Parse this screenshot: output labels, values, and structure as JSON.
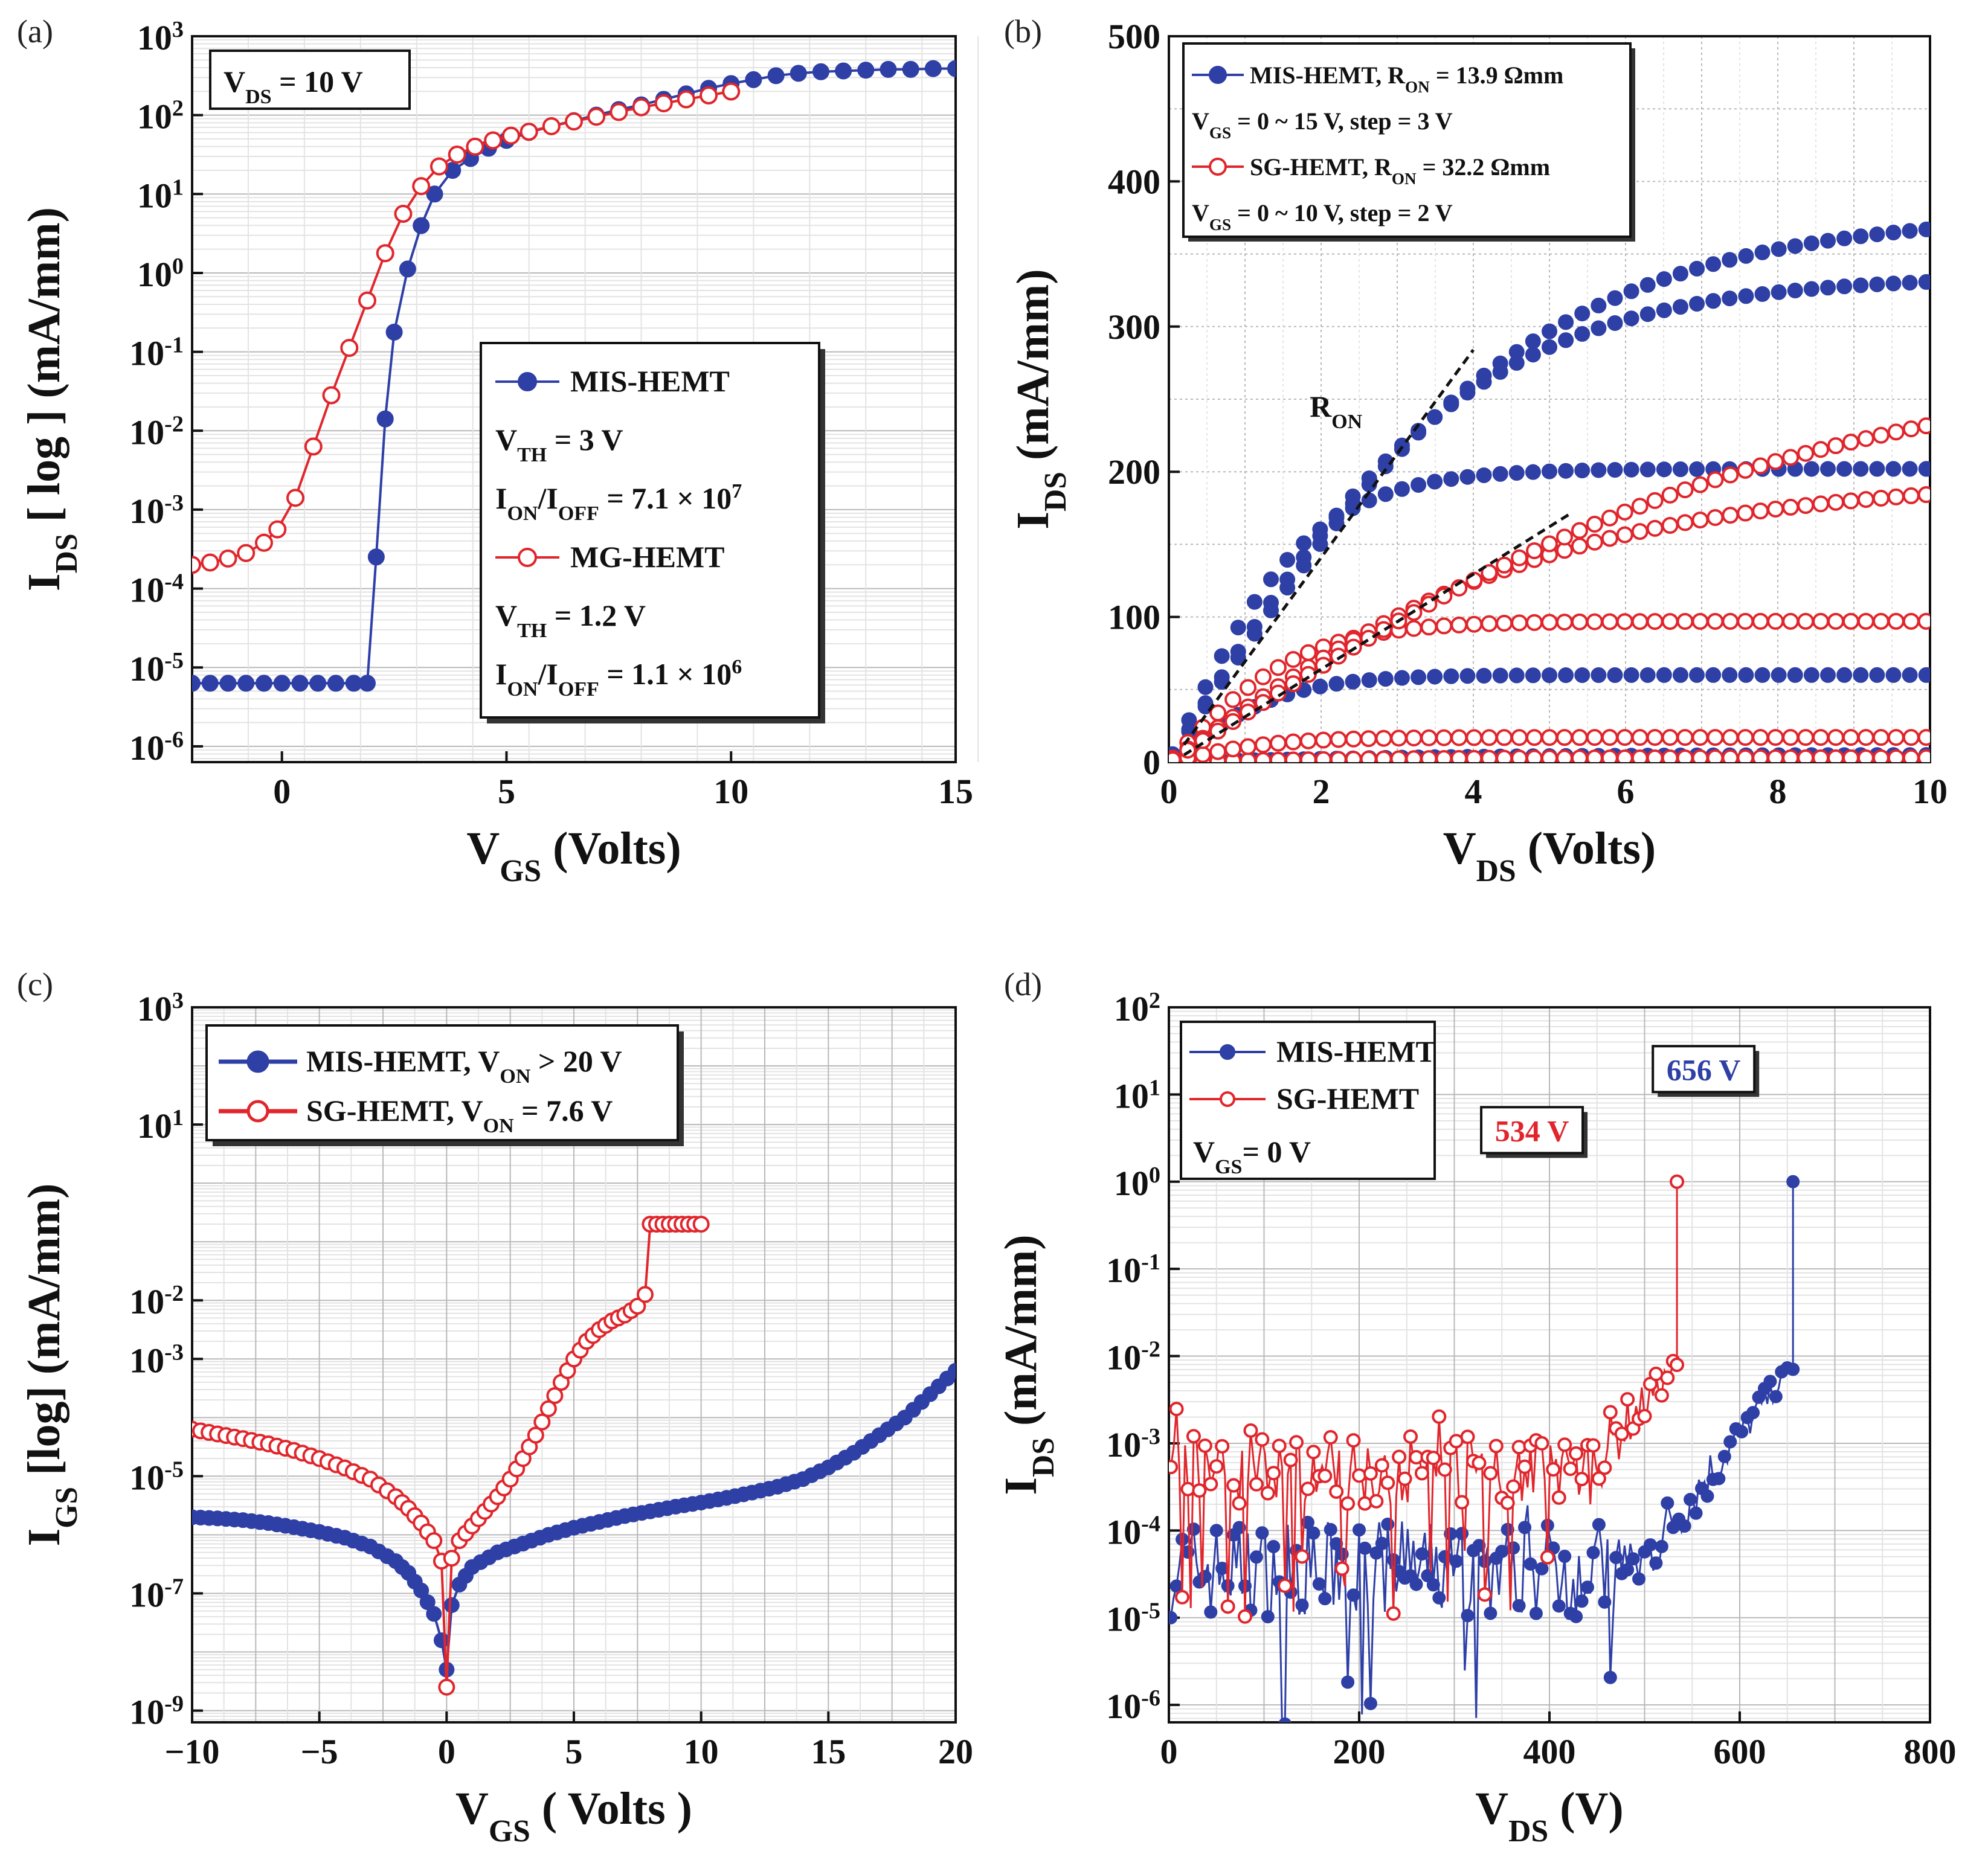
{
  "colors": {
    "blue": "#2e3fa6",
    "red": "#e0262c",
    "grid": "#b8b8b8",
    "minor_grid": "#e3e3e3"
  },
  "chart_data": [
    {
      "id": "a",
      "panel_label": "(a)",
      "type": "line",
      "xscale": "linear",
      "yscale": "log",
      "xlim": [
        -2,
        15
      ],
      "ylim": [
        -6.2,
        3
      ],
      "xticks": [
        "0",
        "5",
        "10",
        "15"
      ],
      "yticks": [
        {
          "b": "10",
          "e": "3"
        },
        {
          "b": "10",
          "e": "2"
        },
        {
          "b": "10",
          "e": "1"
        },
        {
          "b": "10",
          "e": "0"
        },
        {
          "b": "10",
          "e": "-1"
        },
        {
          "b": "10",
          "e": "-2"
        },
        {
          "b": "10",
          "e": "-3"
        },
        {
          "b": "10",
          "e": "-4"
        },
        {
          "b": "10",
          "e": "-5"
        },
        {
          "b": "10",
          "e": "-6"
        }
      ],
      "xlabel": {
        "main": "V",
        "sub": "GS",
        "rest": " (Volts)"
      },
      "ylabel": {
        "main": "I",
        "sub": "DS",
        "rest": " [ log ] (mA/mm)"
      },
      "annotation": {
        "main": "V",
        "sub": "DS",
        "rest": " = 10 V"
      },
      "legend": [
        {
          "series": "MIS-HEMT",
          "marker": "filled",
          "label": "MIS-HEMT"
        },
        {
          "text": {
            "main": "V",
            "sub": "TH",
            "rest": " = 3 V"
          }
        },
        {
          "text": {
            "main": "I",
            "sub": "ON",
            "mid": "/I",
            "sub2": "OFF",
            "rest": " = 7.1 × 10",
            "sup": "7"
          }
        },
        {
          "series": "MG-HEMT",
          "marker": "open",
          "label": "MG-HEMT"
        },
        {
          "text": {
            "main": "V",
            "sub": "TH",
            "rest": " = 1.2 V"
          }
        },
        {
          "text": {
            "main": "I",
            "sub": "ON",
            "mid": "/I",
            "sub2": "OFF",
            "rest": " = 1.1 × 10",
            "sup": "6"
          }
        }
      ],
      "series": [
        {
          "name": "MIS-HEMT",
          "color": "blue",
          "marker": "filled",
          "x": [
            -2.0,
            -1.6,
            -1.2,
            -0.8,
            -0.4,
            0.0,
            0.4,
            0.8,
            1.2,
            1.6,
            1.9,
            2.1,
            2.3,
            2.5,
            2.8,
            3.1,
            3.4,
            3.8,
            4.2,
            4.6,
            5.0,
            5.5,
            6.0,
            6.5,
            7.0,
            7.5,
            8.0,
            8.5,
            9.0,
            9.5,
            10,
            10.5,
            11,
            11.5,
            12,
            12.5,
            13,
            13.5,
            14,
            14.5,
            15
          ],
          "y_log10": [
            -5.2,
            -5.2,
            -5.2,
            -5.2,
            -5.2,
            -5.2,
            -5.2,
            -5.2,
            -5.2,
            -5.2,
            -5.2,
            -3.6,
            -1.85,
            -0.75,
            0.05,
            0.6,
            1.0,
            1.3,
            1.45,
            1.58,
            1.68,
            1.78,
            1.86,
            1.93,
            2.0,
            2.07,
            2.13,
            2.2,
            2.27,
            2.34,
            2.4,
            2.45,
            2.5,
            2.53,
            2.55,
            2.56,
            2.57,
            2.58,
            2.58,
            2.59,
            2.59
          ]
        },
        {
          "name": "MG-HEMT",
          "color": "red",
          "marker": "open",
          "x": [
            -2.0,
            -1.6,
            -1.2,
            -0.8,
            -0.4,
            -0.1,
            0.3,
            0.7,
            1.1,
            1.5,
            1.9,
            2.3,
            2.7,
            3.1,
            3.5,
            3.9,
            4.3,
            4.7,
            5.1,
            5.5,
            6.0,
            6.5,
            7.0,
            7.5,
            8.0,
            8.5,
            9.0,
            9.5,
            10.0
          ],
          "y_log10": [
            -3.7,
            -3.67,
            -3.62,
            -3.55,
            -3.42,
            -3.25,
            -2.85,
            -2.2,
            -1.55,
            -0.95,
            -0.35,
            0.25,
            0.75,
            1.1,
            1.35,
            1.5,
            1.6,
            1.68,
            1.74,
            1.79,
            1.86,
            1.92,
            1.98,
            2.04,
            2.1,
            2.15,
            2.2,
            2.25,
            2.3
          ]
        }
      ]
    },
    {
      "id": "b",
      "panel_label": "(b)",
      "type": "line",
      "xscale": "linear",
      "yscale": "linear",
      "xlim": [
        0,
        10
      ],
      "ylim": [
        0,
        500
      ],
      "xticks": [
        "0",
        "2",
        "4",
        "6",
        "8",
        "10"
      ],
      "yticks": [
        "0",
        "100",
        "200",
        "300",
        "400",
        "500"
      ],
      "xlabel": {
        "main": "V",
        "sub": "DS",
        "rest": " (Volts)"
      },
      "ylabel": {
        "main": "I",
        "sub": "DS",
        "rest": " (mA/mm)"
      },
      "annotation": {
        "main": "R",
        "sub": "ON"
      },
      "ron_lines": [
        {
          "x": [
            0.2,
            4.0
          ],
          "y": [
            12,
            284
          ]
        },
        {
          "x": [
            0.2,
            5.3
          ],
          "y": [
            5,
            172
          ]
        }
      ],
      "legend": [
        {
          "series": "MIS-HEMT",
          "marker": "filled",
          "text": {
            "main": "MIS-HEMT, R",
            "sub": "ON",
            "rest": " = 13.9 Ωmm"
          }
        },
        {
          "text": {
            "main": "V",
            "sub": "GS",
            "rest": " = 0 ~ 15 V, step = 3 V"
          }
        },
        {
          "series": "SG-HEMT",
          "marker": "open",
          "text": {
            "main": "SG-HEMT, R",
            "sub": "ON",
            "rest": " = 32.2 Ωmm"
          }
        },
        {
          "text": {
            "main": "V",
            "sub": "GS",
            "rest": " = 0 ~ 10 V, step = 2 V"
          }
        }
      ],
      "series": [
        {
          "name": "MIS-HEMT VGS=0",
          "color": "blue",
          "marker": "filled",
          "sat": 5,
          "slope": 1.2
        },
        {
          "name": "MIS-HEMT VGS=3",
          "color": "blue",
          "marker": "filled",
          "sat": 60,
          "slope": 40
        },
        {
          "name": "MIS-HEMT VGS=6",
          "color": "blue",
          "marker": "filled",
          "sat": 202,
          "slope": 110
        },
        {
          "name": "MIS-HEMT VGS=9",
          "color": "blue",
          "marker": "filled",
          "sat": 335,
          "slope": 85
        },
        {
          "name": "MIS-HEMT VGS=12",
          "color": "blue",
          "marker": "filled",
          "sat": 378,
          "slope": 80
        },
        {
          "name": "SG-HEMT VGS=0",
          "color": "red",
          "marker": "open",
          "sat": 3,
          "slope": 1
        },
        {
          "name": "SG-HEMT VGS=2",
          "color": "red",
          "marker": "open",
          "sat": 17,
          "slope": 12
        },
        {
          "name": "SG-HEMT VGS=4",
          "color": "red",
          "marker": "open",
          "sat": 97,
          "slope": 55
        },
        {
          "name": "SG-HEMT VGS=6",
          "color": "red",
          "marker": "open",
          "sat": 190,
          "slope": 40
        },
        {
          "name": "SG-HEMT VGS=8",
          "color": "red",
          "marker": "open",
          "sat": 265,
          "slope": 36
        }
      ]
    },
    {
      "id": "c",
      "panel_label": "(c)",
      "type": "line",
      "xscale": "linear",
      "yscale": "log",
      "xlim": [
        -10,
        20
      ],
      "ylim": [
        -9.2,
        3
      ],
      "xticks": [
        "−10",
        "−5",
        "0",
        "5",
        "10",
        "15",
        "20"
      ],
      "yticks": [
        {
          "b": "10",
          "e": "3"
        },
        {
          "b": "10",
          "e": "1"
        },
        {
          "b": "10",
          "e": "-2"
        },
        {
          "b": "10",
          "e": "-3"
        },
        {
          "b": "10",
          "e": "-5"
        },
        {
          "b": "10",
          "e": "-7"
        },
        {
          "b": "10",
          "e": "-9"
        }
      ],
      "xlabel": {
        "main": "V",
        "sub": "GS",
        "rest": " ( Volts )"
      },
      "ylabel": {
        "main": "I",
        "sub": "GS",
        "rest": " [log] (mA/mm)"
      },
      "legend": [
        {
          "series": "MIS-HEMT",
          "marker": "filled",
          "text": {
            "main": "MIS-HEMT, V",
            "sub": "ON",
            "rest": " > 20 V"
          }
        },
        {
          "series": "SG-HEMT",
          "marker": "open",
          "text": {
            "main": "SG-HEMT, V",
            "sub": "ON",
            "rest": " = 7.6 V"
          }
        }
      ],
      "series": [
        {
          "name": "MIS-HEMT",
          "color": "blue",
          "marker": "filled",
          "x": [
            -10,
            -9,
            -8,
            -7,
            -6,
            -5,
            -4,
            -3,
            -2,
            -1.5,
            -1,
            -0.5,
            -0.2,
            0,
            0.2,
            0.5,
            1,
            2,
            3,
            4,
            5,
            6,
            7,
            8,
            9,
            10,
            11,
            12,
            13,
            14,
            15,
            16,
            17,
            18,
            19,
            20
          ],
          "y_log10": [
            -5.7,
            -5.72,
            -5.75,
            -5.8,
            -5.87,
            -5.95,
            -6.05,
            -6.2,
            -6.45,
            -6.65,
            -6.95,
            -7.35,
            -7.8,
            -8.3,
            -7.2,
            -6.85,
            -6.55,
            -6.3,
            -6.15,
            -6.0,
            -5.88,
            -5.78,
            -5.68,
            -5.6,
            -5.52,
            -5.45,
            -5.37,
            -5.28,
            -5.18,
            -5.05,
            -4.85,
            -4.6,
            -4.3,
            -4.0,
            -3.6,
            -3.2
          ]
        },
        {
          "name": "SG-HEMT",
          "color": "red",
          "marker": "open",
          "x": [
            -10,
            -9,
            -8,
            -7,
            -6,
            -5,
            -4,
            -3,
            -2,
            -1.5,
            -1,
            -0.5,
            -0.2,
            0,
            0.2,
            0.5,
            1,
            1.5,
            2,
            2.5,
            3,
            3.5,
            4,
            4.5,
            5,
            5.5,
            6,
            6.5,
            7,
            7.5,
            7.8,
            8,
            8.5,
            9,
            9.5,
            10
          ],
          "y_log10": [
            -4.2,
            -4.28,
            -4.36,
            -4.45,
            -4.56,
            -4.7,
            -4.86,
            -5.05,
            -5.35,
            -5.55,
            -5.8,
            -6.1,
            -6.45,
            -8.6,
            -6.4,
            -6.1,
            -5.85,
            -5.6,
            -5.35,
            -5.05,
            -4.7,
            -4.3,
            -3.85,
            -3.4,
            -3.0,
            -2.7,
            -2.5,
            -2.35,
            -2.25,
            -2.1,
            -1.9,
            -0.7,
            -0.7,
            -0.7,
            -0.7,
            -0.7
          ]
        }
      ]
    },
    {
      "id": "d",
      "panel_label": "(d)",
      "type": "line",
      "xscale": "linear",
      "yscale": "log",
      "xlim": [
        0,
        800
      ],
      "ylim": [
        -6.2,
        2
      ],
      "xticks": [
        "0",
        "200",
        "400",
        "600",
        "800"
      ],
      "yticks": [
        {
          "b": "10",
          "e": "2"
        },
        {
          "b": "10",
          "e": "1"
        },
        {
          "b": "10",
          "e": "0"
        },
        {
          "b": "10",
          "e": "-1"
        },
        {
          "b": "10",
          "e": "-2"
        },
        {
          "b": "10",
          "e": "-3"
        },
        {
          "b": "10",
          "e": "-4"
        },
        {
          "b": "10",
          "e": "-5"
        },
        {
          "b": "10",
          "e": "-6"
        }
      ],
      "xlabel": {
        "main": "V",
        "sub": "DS",
        "rest": " (V)"
      },
      "ylabel": {
        "main": "I",
        "sub": "DS",
        "rest": " (mA/mm)"
      },
      "callouts": [
        {
          "text": "656 V",
          "color": "blue",
          "x": 656
        },
        {
          "text": "534 V",
          "color": "red",
          "x": 534
        }
      ],
      "legend": [
        {
          "series": "MIS-HEMT",
          "marker": "filled",
          "label": "MIS-HEMT"
        },
        {
          "series": "SG-HEMT",
          "marker": "open",
          "label": "SG-HEMT"
        },
        {
          "text": {
            "main": "V",
            "sub": "GS",
            "rest": "= 0 V"
          }
        }
      ],
      "series": [
        {
          "name": "MIS-HEMT",
          "color": "blue",
          "marker": "filled",
          "breakdown_x": 656,
          "noise_floor_log10": [
            -5.0,
            -3.9
          ],
          "rise_start": 490
        },
        {
          "name": "SG-HEMT",
          "color": "red",
          "marker": "open",
          "breakdown_x": 534,
          "noise_floor_log10": [
            -3.7,
            -2.9
          ],
          "rise_start": 440
        }
      ]
    }
  ]
}
